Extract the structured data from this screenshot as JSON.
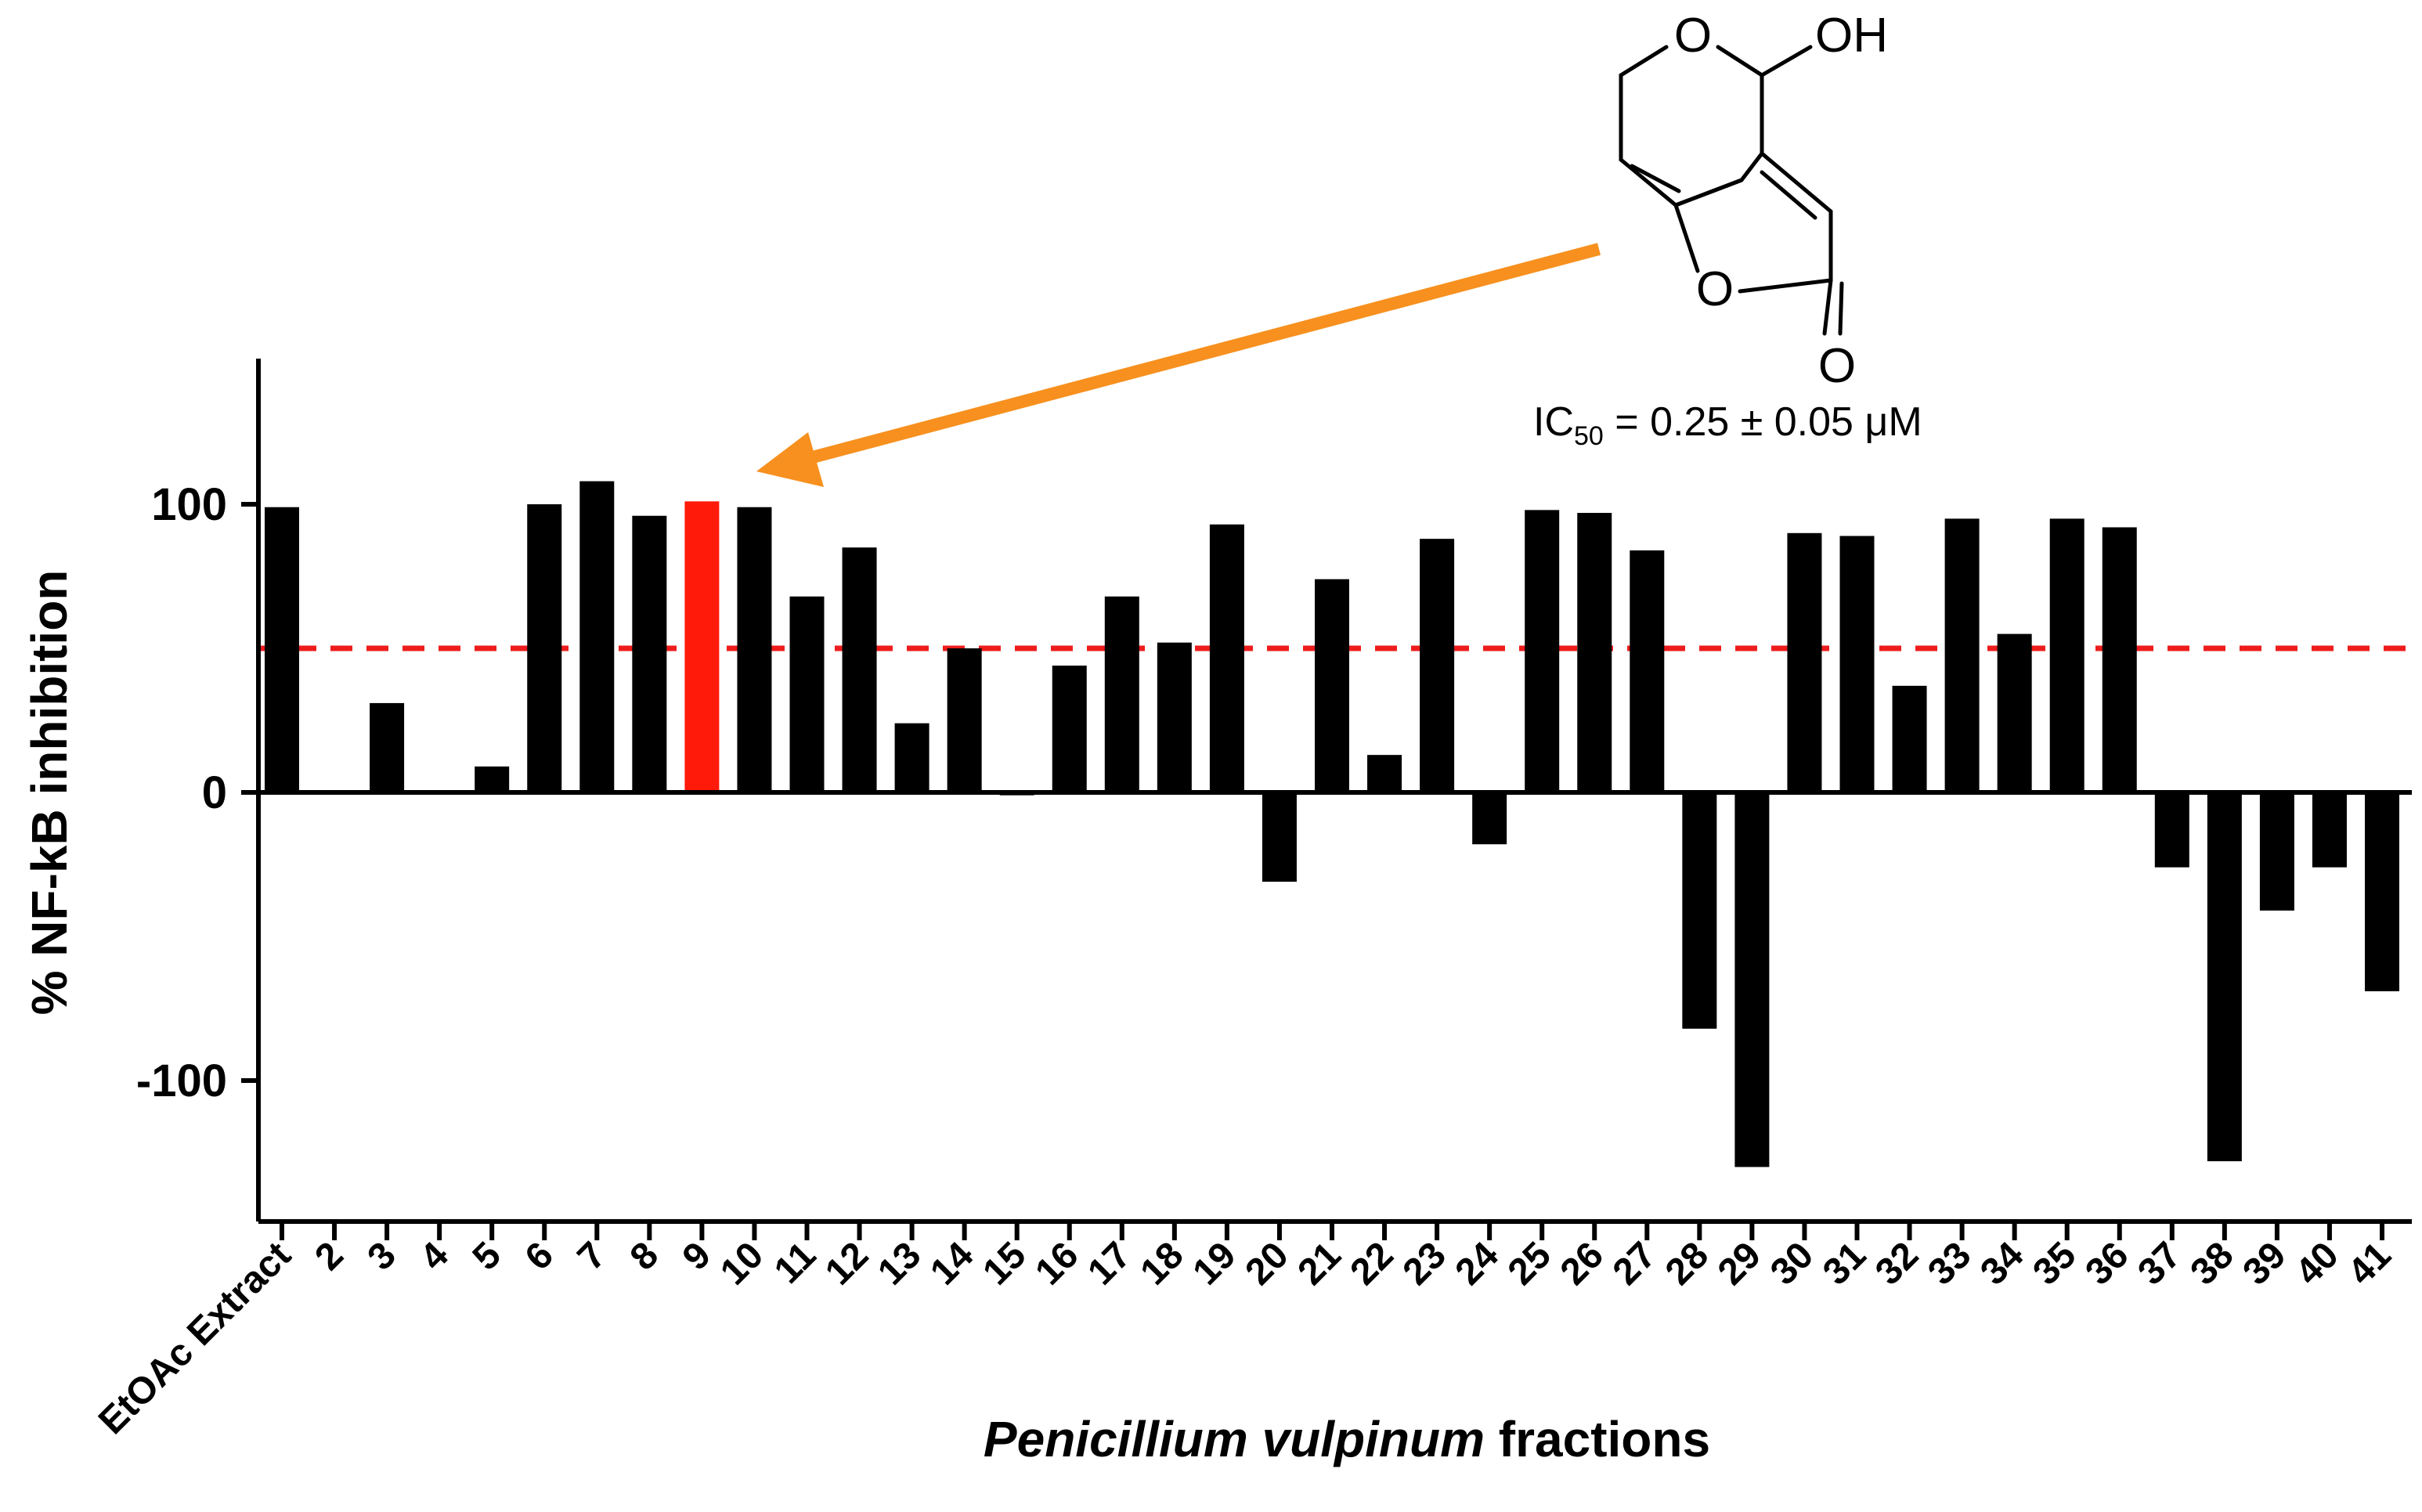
{
  "chart_data": {
    "type": "bar",
    "title": "",
    "xlabel": "fractions",
    "xlabel_italic": "Penicillium vulpinum",
    "ylabel": "% NF-kB inhibition",
    "ylim": [
      -150,
      150
    ],
    "yticks": [
      -100,
      0,
      100
    ],
    "threshold": 50,
    "threshold_color": "#ee1c1c",
    "bar_color": "#000000",
    "highlight_color": "#ff1a0a",
    "arrow_color": "#f7901e",
    "highlight_index": 8,
    "categories": [
      "EtOAc Extract",
      "2",
      "3",
      "4",
      "5",
      "6",
      "7",
      "8",
      "9",
      "10",
      "11",
      "12",
      "13",
      "14",
      "15",
      "16",
      "17",
      "18",
      "19",
      "20",
      "21",
      "22",
      "23",
      "24",
      "25",
      "26",
      "27",
      "28",
      "29",
      "30",
      "31",
      "32",
      "33",
      "34",
      "35",
      "36",
      "37",
      "38",
      "39",
      "40",
      "41"
    ],
    "values": [
      99,
      0,
      31,
      0,
      9,
      100,
      108,
      96,
      101,
      99,
      68,
      85,
      24,
      50,
      -1,
      44,
      68,
      52,
      93,
      -31,
      74,
      13,
      88,
      -18,
      98,
      97,
      84,
      -82,
      -130,
      90,
      89,
      37,
      95,
      55,
      95,
      92,
      -26,
      -128,
      -41,
      -26,
      -69
    ],
    "annotation": {
      "ic50_prefix": "IC",
      "ic50_sub": "50",
      "ic50_rest": " = 0.25 ± 0.05 μM",
      "atoms": {
        "o_ring": "O",
        "oh": "OH",
        "o_furan": "O",
        "o_carbonyl": "O"
      }
    }
  }
}
